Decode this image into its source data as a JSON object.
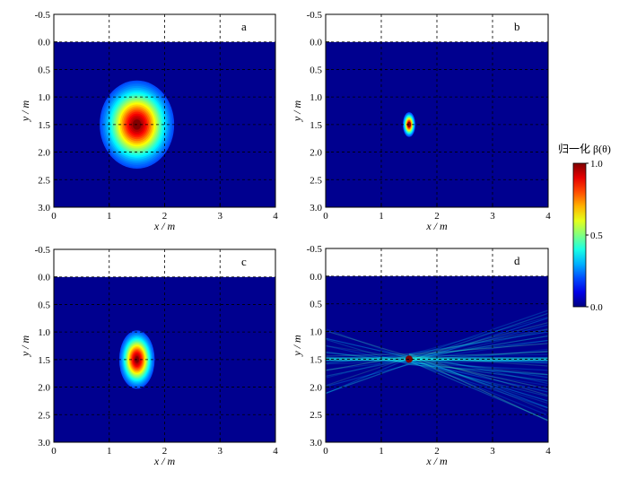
{
  "chart_data": [
    {
      "type": "heatmap",
      "panel": "a",
      "xlabel": "x / m",
      "ylabel": "y / m",
      "xlim": [
        0,
        4
      ],
      "ylim": [
        3.0,
        -0.5
      ],
      "xticks": [
        "0",
        "1",
        "2",
        "3",
        "4"
      ],
      "yticks": [
        "-0.5",
        "0.0",
        "0.5",
        "1.0",
        "1.5",
        "2.0",
        "2.5",
        "3.0"
      ],
      "grid": true,
      "water_surface_y": 0.0,
      "peak": {
        "x": 1.5,
        "y": 1.5,
        "value": 1.0
      },
      "spread": {
        "x": 0.42,
        "y": 0.5
      }
    },
    {
      "type": "heatmap",
      "panel": "b",
      "xlabel": "x / m",
      "ylabel": "y / m",
      "xlim": [
        0,
        4
      ],
      "ylim": [
        3.0,
        -0.5
      ],
      "xticks": [
        "0",
        "1",
        "2",
        "3",
        "4"
      ],
      "yticks": [
        "-0.5",
        "0.0",
        "0.5",
        "1.0",
        "1.5",
        "2.0",
        "2.5",
        "3.0"
      ],
      "grid": true,
      "water_surface_y": 0.0,
      "peak": {
        "x": 1.5,
        "y": 1.5,
        "value": 1.0
      },
      "spread": {
        "x": 0.07,
        "y": 0.14
      }
    },
    {
      "type": "heatmap",
      "panel": "c",
      "xlabel": "x / m",
      "ylabel": "y / m",
      "xlim": [
        0,
        4
      ],
      "ylim": [
        3.0,
        -0.5
      ],
      "xticks": [
        "0",
        "1",
        "2",
        "3",
        "4"
      ],
      "yticks": [
        "-0.5",
        "0.0",
        "0.5",
        "1.0",
        "1.5",
        "2.0",
        "2.5",
        "3.0"
      ],
      "grid": true,
      "water_surface_y": 0.0,
      "peak": {
        "x": 1.5,
        "y": 1.5,
        "value": 1.0
      },
      "spread": {
        "x": 0.2,
        "y": 0.33
      }
    },
    {
      "type": "heatmap",
      "panel": "d",
      "xlabel": "x / m",
      "ylabel": "y / m",
      "xlim": [
        0,
        4
      ],
      "ylim": [
        3.0,
        -0.5
      ],
      "xticks": [
        "0",
        "1",
        "2",
        "3",
        "4"
      ],
      "yticks": [
        "-0.5",
        "0.0",
        "0.5",
        "1.0",
        "1.5",
        "2.0",
        "2.5",
        "3.0"
      ],
      "grid": true,
      "water_surface_y": 0.0,
      "peak": {
        "x": 1.5,
        "y": 1.5,
        "value": 1.0
      },
      "spread": {
        "x": 0.03,
        "y": 0.03
      }
    }
  ],
  "colorbar": {
    "title": "归一化 β(θ)",
    "range": [
      0.0,
      1.0
    ],
    "ticks": [
      "1.0",
      "0.5",
      "0.0"
    ],
    "colormap": "jet"
  },
  "colors": {
    "background_low": "#00008f",
    "peak": "#800000",
    "surface_above": "#ffffff"
  }
}
